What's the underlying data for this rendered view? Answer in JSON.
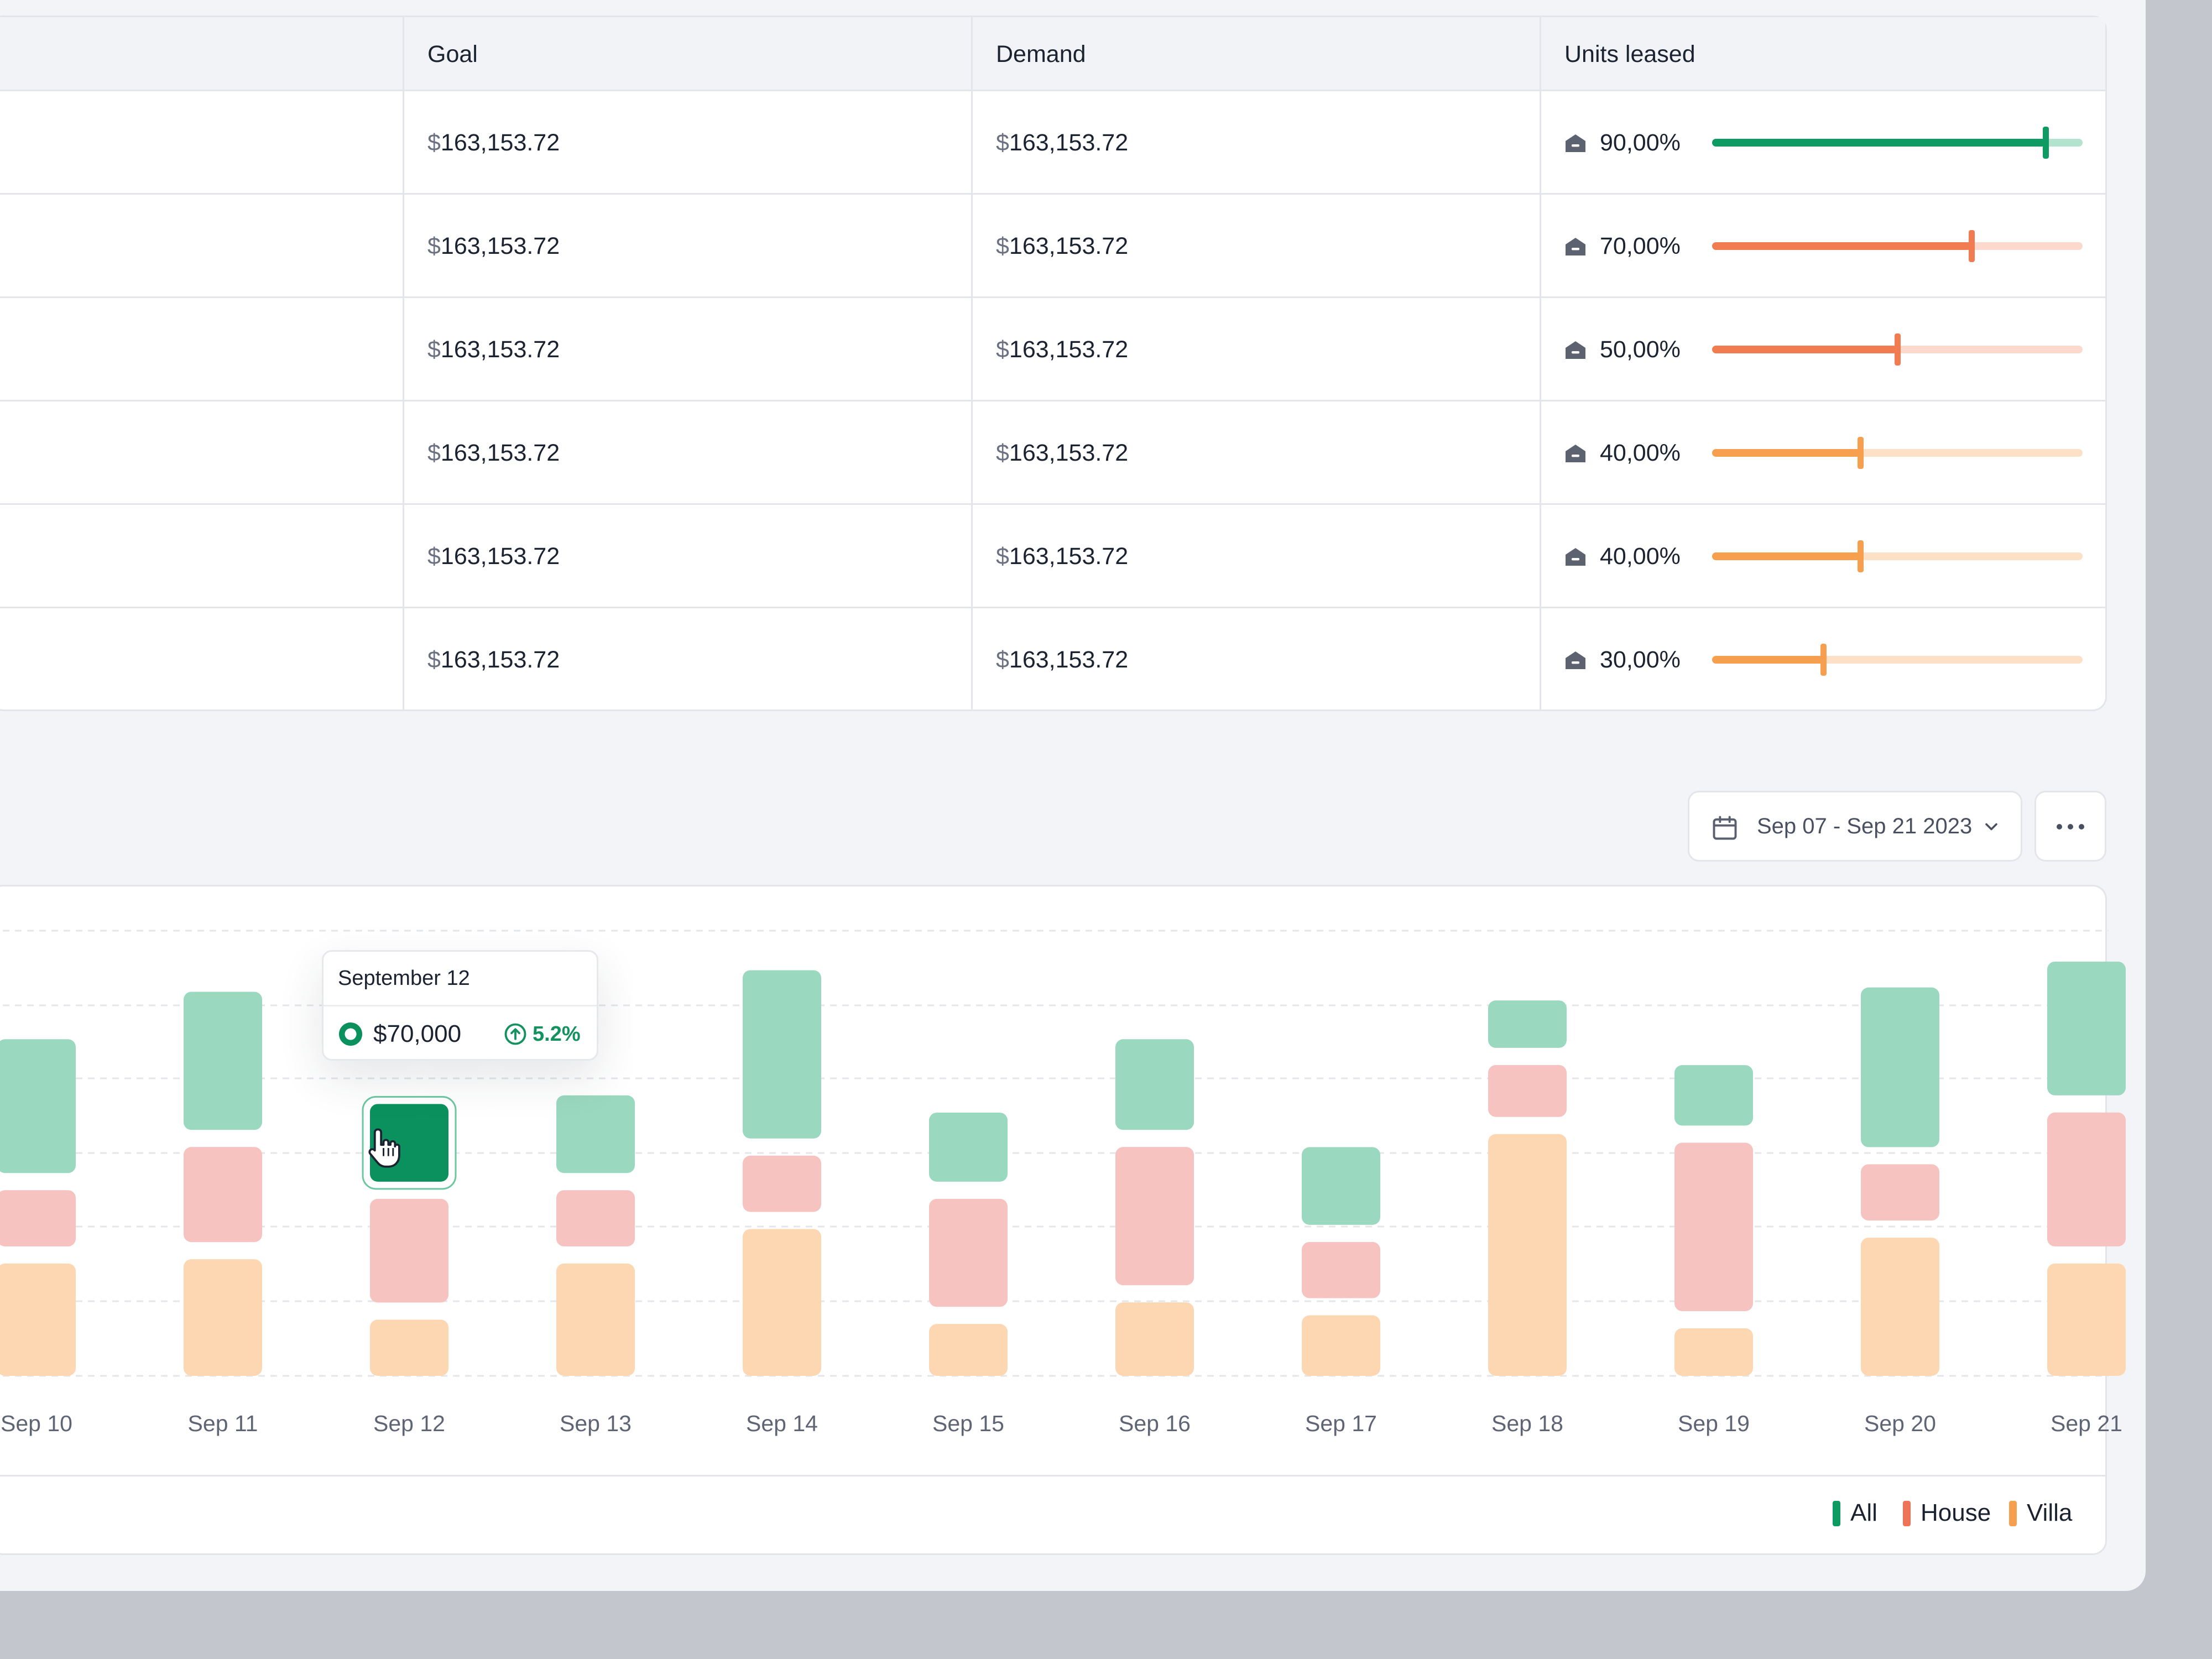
{
  "table": {
    "columns": {
      "goal": "Goal",
      "demand": "Demand",
      "units_leased": "Units leased"
    },
    "rows": [
      {
        "currency": "$",
        "goal": "163,153.72",
        "demand": "163,153.72",
        "units_leased": "90,00%",
        "fraction": 0.9,
        "level": "high"
      },
      {
        "currency": "$",
        "goal": "163,153.72",
        "demand": "163,153.72",
        "units_leased": "70,00%",
        "fraction": 0.7,
        "level": "mid"
      },
      {
        "currency": "$",
        "goal": "163,153.72",
        "demand": "163,153.72",
        "units_leased": "50,00%",
        "fraction": 0.5,
        "level": "mid"
      },
      {
        "currency": "$",
        "goal": "163,153.72",
        "demand": "163,153.72",
        "units_leased": "40,00%",
        "fraction": 0.4,
        "level": "low"
      },
      {
        "currency": "$",
        "goal": "163,153.72",
        "demand": "163,153.72",
        "units_leased": "40,00%",
        "fraction": 0.4,
        "level": "low"
      },
      {
        "currency": "$",
        "goal": "163,153.72",
        "demand": "163,153.72",
        "units_leased": "30,00%",
        "fraction": 0.3,
        "level": "low"
      }
    ],
    "lease_icon": "house-icon",
    "level_colors": {
      "high": {
        "fill": "#0e9a63",
        "track": "#b3e2cf"
      },
      "mid": {
        "fill": "#f27c51",
        "track": "#fcd9cc"
      },
      "low": {
        "fill": "#f6a04f",
        "track": "#fde1c6"
      }
    }
  },
  "toolbar": {
    "date_range": "Sep 07 - Sep 21 2023",
    "calendar_icon": "calendar-icon",
    "chevron_icon": "chevron-down-icon",
    "more_icon": "more-horizontal-icon"
  },
  "chart_data": {
    "type": "bar",
    "stacked": true,
    "categories": [
      "Sep 10",
      "Sep 11",
      "Sep 12",
      "Sep 13",
      "Sep 14",
      "Sep 15",
      "Sep 16",
      "Sep 17",
      "Sep 18",
      "Sep 19",
      "Sep 20",
      "Sep 21"
    ],
    "series": [
      {
        "name": "Villa",
        "color": "#fdd7b2",
        "values": [
          3.0,
          3.1,
          1.7,
          3.0,
          3.8,
          1.6,
          2.1,
          1.8,
          6.0,
          1.5,
          3.6,
          3.0
        ]
      },
      {
        "name": "House",
        "color": "#f6c3c0",
        "values": [
          1.7,
          2.6,
          2.8,
          1.7,
          1.7,
          2.9,
          3.6,
          1.7,
          1.6,
          4.3,
          1.7,
          3.5
        ]
      },
      {
        "name": "All",
        "color": "#9ad8bf",
        "values": [
          3.1,
          3.2,
          1.8,
          1.8,
          3.9,
          1.6,
          2.1,
          1.8,
          1.1,
          1.4,
          3.7,
          3.1
        ]
      }
    ],
    "ylim": [
      0,
      10.7
    ],
    "grid": true,
    "legend": "bottom-right",
    "highlight": {
      "category": "Sep 12",
      "series": "All",
      "color": "#0a915d"
    },
    "tooltip": {
      "title": "September 12",
      "value": "$70,000",
      "change": "5.2%",
      "direction": "up"
    }
  }
}
